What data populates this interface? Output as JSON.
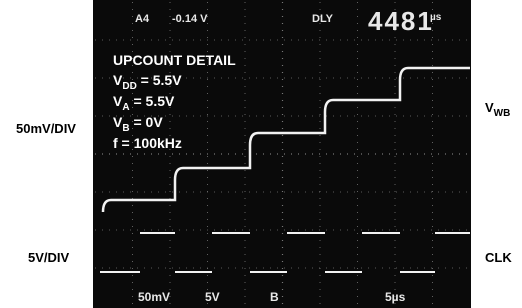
{
  "header": {
    "channel": "A4",
    "offset": "-0.14 V",
    "mode": "DLY",
    "delay": "4481",
    "delay_unit": "µs"
  },
  "caption": {
    "title": "UPCOUNT DETAIL",
    "lines": [
      {
        "symbol": "V",
        "subscript": "DD",
        "text": " = 5.5V"
      },
      {
        "symbol": "V",
        "subscript": "A",
        "text": " = 5.5V"
      },
      {
        "symbol": "V",
        "subscript": "B",
        "text": " = 0V"
      },
      {
        "symbol": "f",
        "subscript": null,
        "text": " = 100kHz"
      }
    ]
  },
  "left_labels": [
    "50mV/DIV",
    "5V/DIV"
  ],
  "right_labels": [
    {
      "symbol": "V",
      "subscript": "WB"
    },
    {
      "symbol": "CLK",
      "subscript": null
    }
  ],
  "footer": [
    "50mV",
    "5V",
    "B",
    "5µs"
  ]
}
